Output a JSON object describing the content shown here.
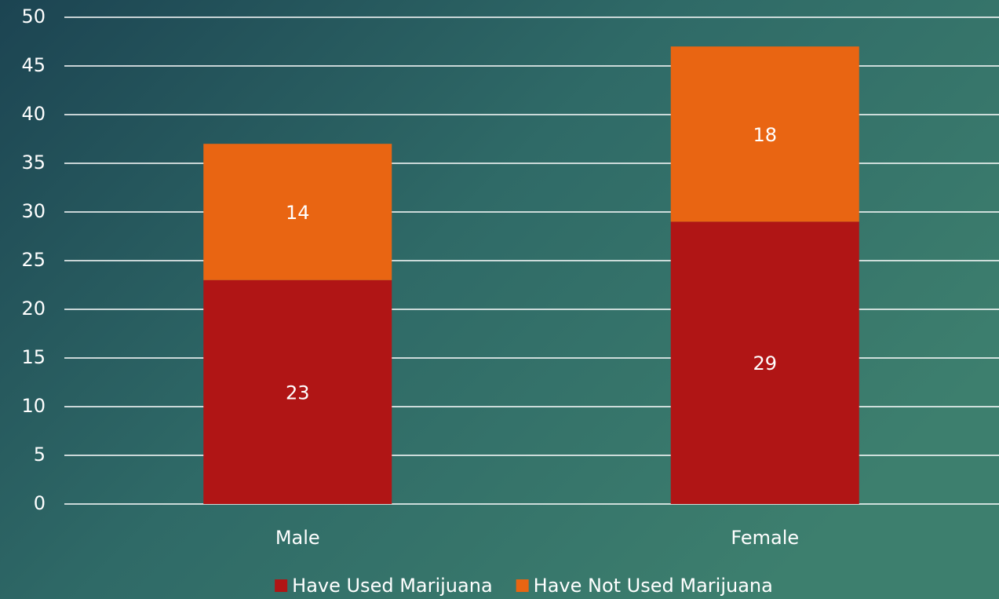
{
  "chart_data": {
    "type": "stacked_bar",
    "categories": [
      "Male",
      "Female"
    ],
    "series": [
      {
        "name": "Have Used Marijuana",
        "color": "#b01515",
        "values": [
          23,
          29
        ]
      },
      {
        "name": "Have Not Used Marijuana",
        "color": "#e96512",
        "values": [
          14,
          18
        ]
      }
    ],
    "ylim": [
      0,
      50
    ],
    "yticks": [
      0,
      5,
      10,
      15,
      20,
      25,
      30,
      35,
      40,
      45,
      50
    ],
    "grid": true,
    "legend": "bottom"
  }
}
